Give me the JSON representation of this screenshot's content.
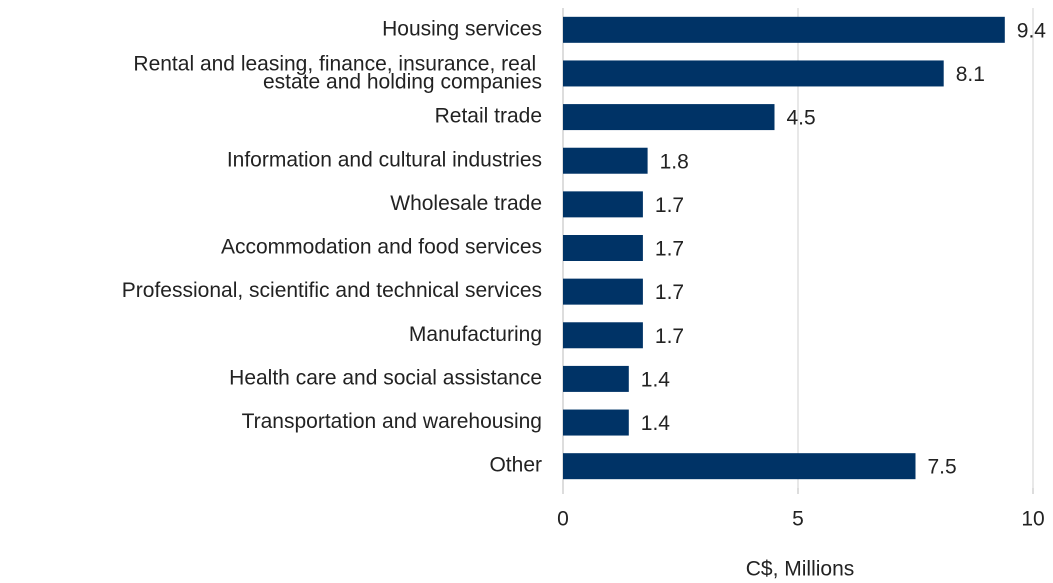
{
  "chart_data": {
    "type": "bar",
    "orientation": "horizontal",
    "categories": [
      "Housing services",
      "Rental and leasing, finance, insurance, real estate and holding companies",
      "Retail trade",
      "Information and cultural industries",
      "Wholesale trade",
      "Accommodation and food services",
      "Professional, scientific and technical services",
      "Manufacturing",
      "Health care and social assistance",
      "Transportation and warehousing",
      "Other"
    ],
    "values": [
      9.4,
      8.1,
      4.5,
      1.8,
      1.7,
      1.7,
      1.7,
      1.7,
      1.4,
      1.4,
      7.5
    ],
    "color": "#003366",
    "xlabel": "C$, Millions",
    "xlim": [
      0,
      10
    ],
    "xticks": [
      0,
      5,
      10
    ],
    "grid": true
  }
}
